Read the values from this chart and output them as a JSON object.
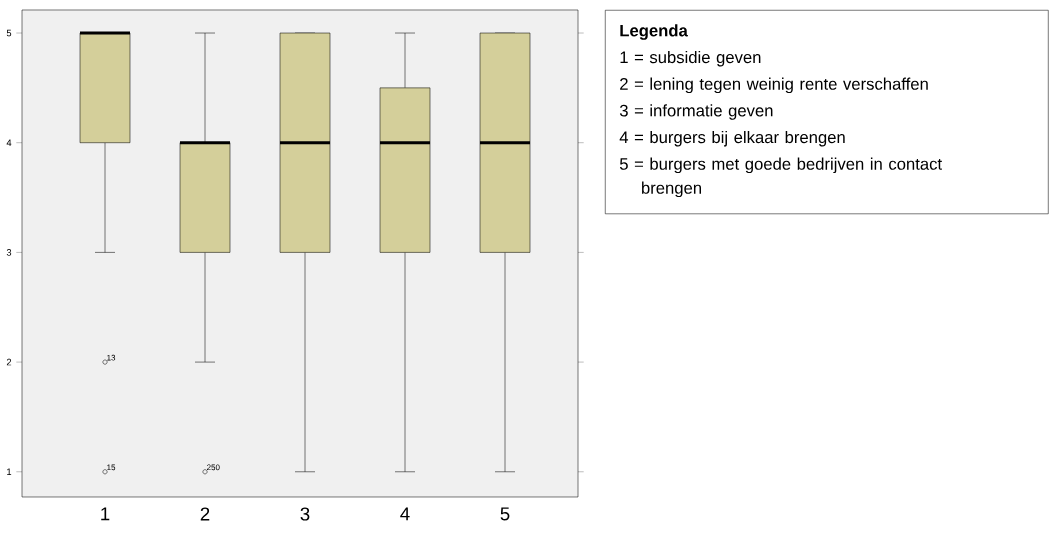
{
  "chart_data": {
    "type": "box",
    "categories": [
      "1",
      "2",
      "3",
      "4",
      "5"
    ],
    "boxes": [
      {
        "low": 3,
        "q1": 4,
        "median": 5,
        "q3": 5,
        "high": 5,
        "outliers": [
          2,
          1
        ]
      },
      {
        "low": 2,
        "q1": 3,
        "median": 4,
        "q3": 4,
        "high": 5,
        "outliers": [
          1
        ]
      },
      {
        "low": 1,
        "q1": 3,
        "median": 4,
        "q3": 5,
        "high": 5
      },
      {
        "low": 1,
        "q1": 3,
        "median": 4,
        "q3": 4.5,
        "high": 5
      },
      {
        "low": 1,
        "q1": 3,
        "median": 4,
        "q3": 5,
        "high": 5
      }
    ],
    "color": "#d4cf9a",
    "ylim": [
      0.77,
      5.21
    ],
    "yticks": [
      1,
      2,
      3,
      4,
      5
    ],
    "marker": "circle",
    "legend_title": "Legenda",
    "annotations": [
      "13",
      "15",
      "250",
      "1 = subsidie geven",
      "2 = lening tegen weinig rente verschaffen",
      "3 = informatie geven",
      "4 = burgers bij elkaar brengen",
      "5 = burgers met goede bedrijven in contact brengen"
    ]
  }
}
